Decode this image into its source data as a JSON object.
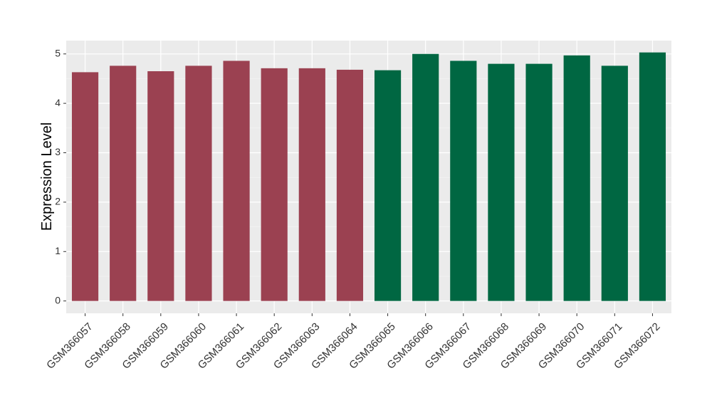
{
  "chart_data": {
    "type": "bar",
    "y_label": "Expression Level",
    "categories": [
      "GSM366057",
      "GSM366058",
      "GSM366059",
      "GSM366060",
      "GSM366061",
      "GSM366062",
      "GSM366063",
      "GSM366064",
      "GSM366065",
      "GSM366066",
      "GSM366067",
      "GSM366068",
      "GSM366069",
      "GSM366070",
      "GSM366071",
      "GSM366072"
    ],
    "values": [
      4.63,
      4.76,
      4.65,
      4.76,
      4.86,
      4.71,
      4.71,
      4.68,
      4.67,
      5.0,
      4.86,
      4.8,
      4.8,
      4.97,
      4.76,
      5.03
    ],
    "colors": [
      "#9b4151",
      "#9b4151",
      "#9b4151",
      "#9b4151",
      "#9b4151",
      "#9b4151",
      "#9b4151",
      "#9b4151",
      "#006742",
      "#006742",
      "#006742",
      "#006742",
      "#006742",
      "#006742",
      "#006742",
      "#006742"
    ],
    "ylim": [
      -0.25,
      5.27
    ],
    "yticks": [
      0,
      1,
      2,
      3,
      4,
      5
    ],
    "grid": true
  }
}
